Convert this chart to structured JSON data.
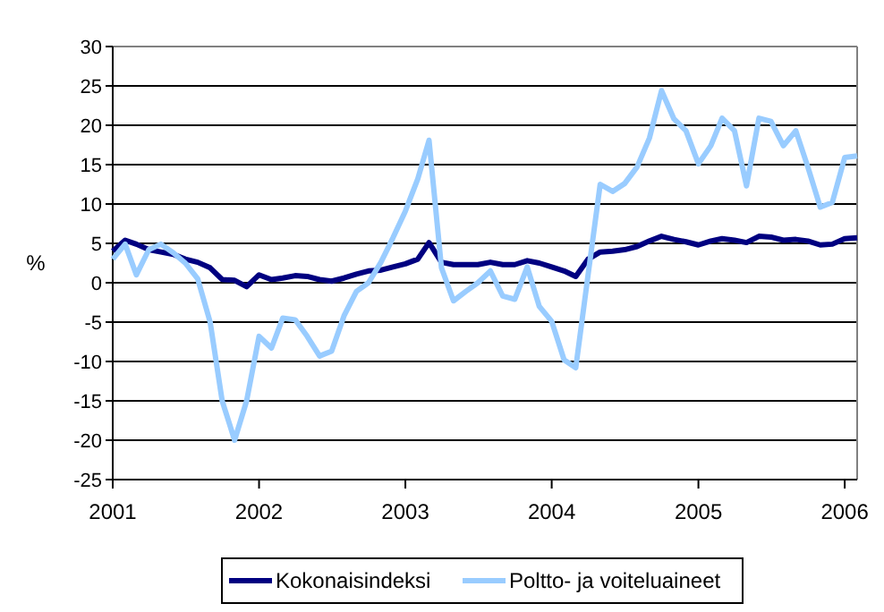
{
  "chart_data": {
    "type": "line",
    "ylabel": "%",
    "x": [
      "2001-01",
      "2001-02",
      "2001-03",
      "2001-04",
      "2001-05",
      "2001-06",
      "2001-07",
      "2001-08",
      "2001-09",
      "2001-10",
      "2001-11",
      "2001-12",
      "2002-01",
      "2002-02",
      "2002-03",
      "2002-04",
      "2002-05",
      "2002-06",
      "2002-07",
      "2002-08",
      "2002-09",
      "2002-10",
      "2002-11",
      "2002-12",
      "2003-01",
      "2003-02",
      "2003-03",
      "2003-04",
      "2003-05",
      "2003-06",
      "2003-07",
      "2003-08",
      "2003-09",
      "2003-10",
      "2003-11",
      "2003-12",
      "2004-01",
      "2004-02",
      "2004-03",
      "2004-04",
      "2004-05",
      "2004-06",
      "2004-07",
      "2004-08",
      "2004-09",
      "2004-10",
      "2004-11",
      "2004-12",
      "2005-01",
      "2005-02",
      "2005-03",
      "2005-04",
      "2005-05",
      "2005-06",
      "2005-07",
      "2005-08",
      "2005-09",
      "2005-10",
      "2005-11",
      "2005-12",
      "2006-01",
      "2006-02"
    ],
    "series": [
      {
        "name": "Kokonaisindeksi",
        "color": "#000080",
        "values": [
          4.0,
          5.4,
          4.9,
          4.2,
          3.9,
          3.6,
          3.0,
          2.6,
          1.9,
          0.4,
          0.3,
          -0.5,
          1.0,
          0.4,
          0.6,
          0.9,
          0.8,
          0.4,
          0.2,
          0.6,
          1.1,
          1.5,
          1.6,
          2.0,
          2.4,
          3.0,
          5.1,
          2.6,
          2.3,
          2.3,
          2.3,
          2.6,
          2.3,
          2.3,
          2.8,
          2.5,
          2.0,
          1.5,
          0.8,
          3.0,
          3.9,
          4.0,
          4.2,
          4.6,
          5.3,
          5.9,
          5.5,
          5.2,
          4.8,
          5.3,
          5.6,
          5.4,
          5.1,
          5.9,
          5.8,
          5.4,
          5.5,
          5.3,
          4.8,
          4.9,
          5.6,
          5.7
        ]
      },
      {
        "name": "Poltto- ja voiteluaineet",
        "color": "#99ccff",
        "values": [
          3.0,
          4.9,
          1.0,
          4.2,
          4.9,
          3.8,
          2.5,
          0.5,
          -5,
          -15,
          -20,
          -15,
          -6.8,
          -8.3,
          -4.5,
          -4.7,
          -6.8,
          -9.3,
          -8.7,
          -4.2,
          -1.1,
          0,
          2.6,
          5.7,
          9.1,
          13.2,
          18.1,
          1.9,
          -2.3,
          -1.1,
          0,
          1.5,
          -1.7,
          -2.1,
          2.0,
          -3.0,
          -4.9,
          -9.8,
          -10.8,
          1.1,
          12.5,
          11.6,
          12.6,
          14.7,
          18.4,
          24.4,
          20.8,
          19.3,
          15.1,
          17.4,
          20.9,
          19.3,
          12.3,
          20.9,
          20.5,
          17.4,
          19.3,
          14.7,
          9.6,
          10.2,
          15.9,
          16.1
        ]
      }
    ],
    "xlim": [
      "2001-01",
      "2006-02"
    ],
    "xticks": [
      {
        "value": "2001-01",
        "label": "2001"
      },
      {
        "value": "2002-01",
        "label": "2002"
      },
      {
        "value": "2003-01",
        "label": "2003"
      },
      {
        "value": "2004-01",
        "label": "2004"
      },
      {
        "value": "2005-01",
        "label": "2005"
      },
      {
        "value": "2006-01",
        "label": "2006"
      }
    ],
    "ylim": [
      -25,
      30
    ],
    "yticks": [
      -25,
      -20,
      -15,
      -10,
      -5,
      0,
      5,
      10,
      15,
      20,
      25,
      30
    ],
    "grid": "y",
    "legend": "bottom",
    "marker": "none",
    "line_style": "solid"
  }
}
